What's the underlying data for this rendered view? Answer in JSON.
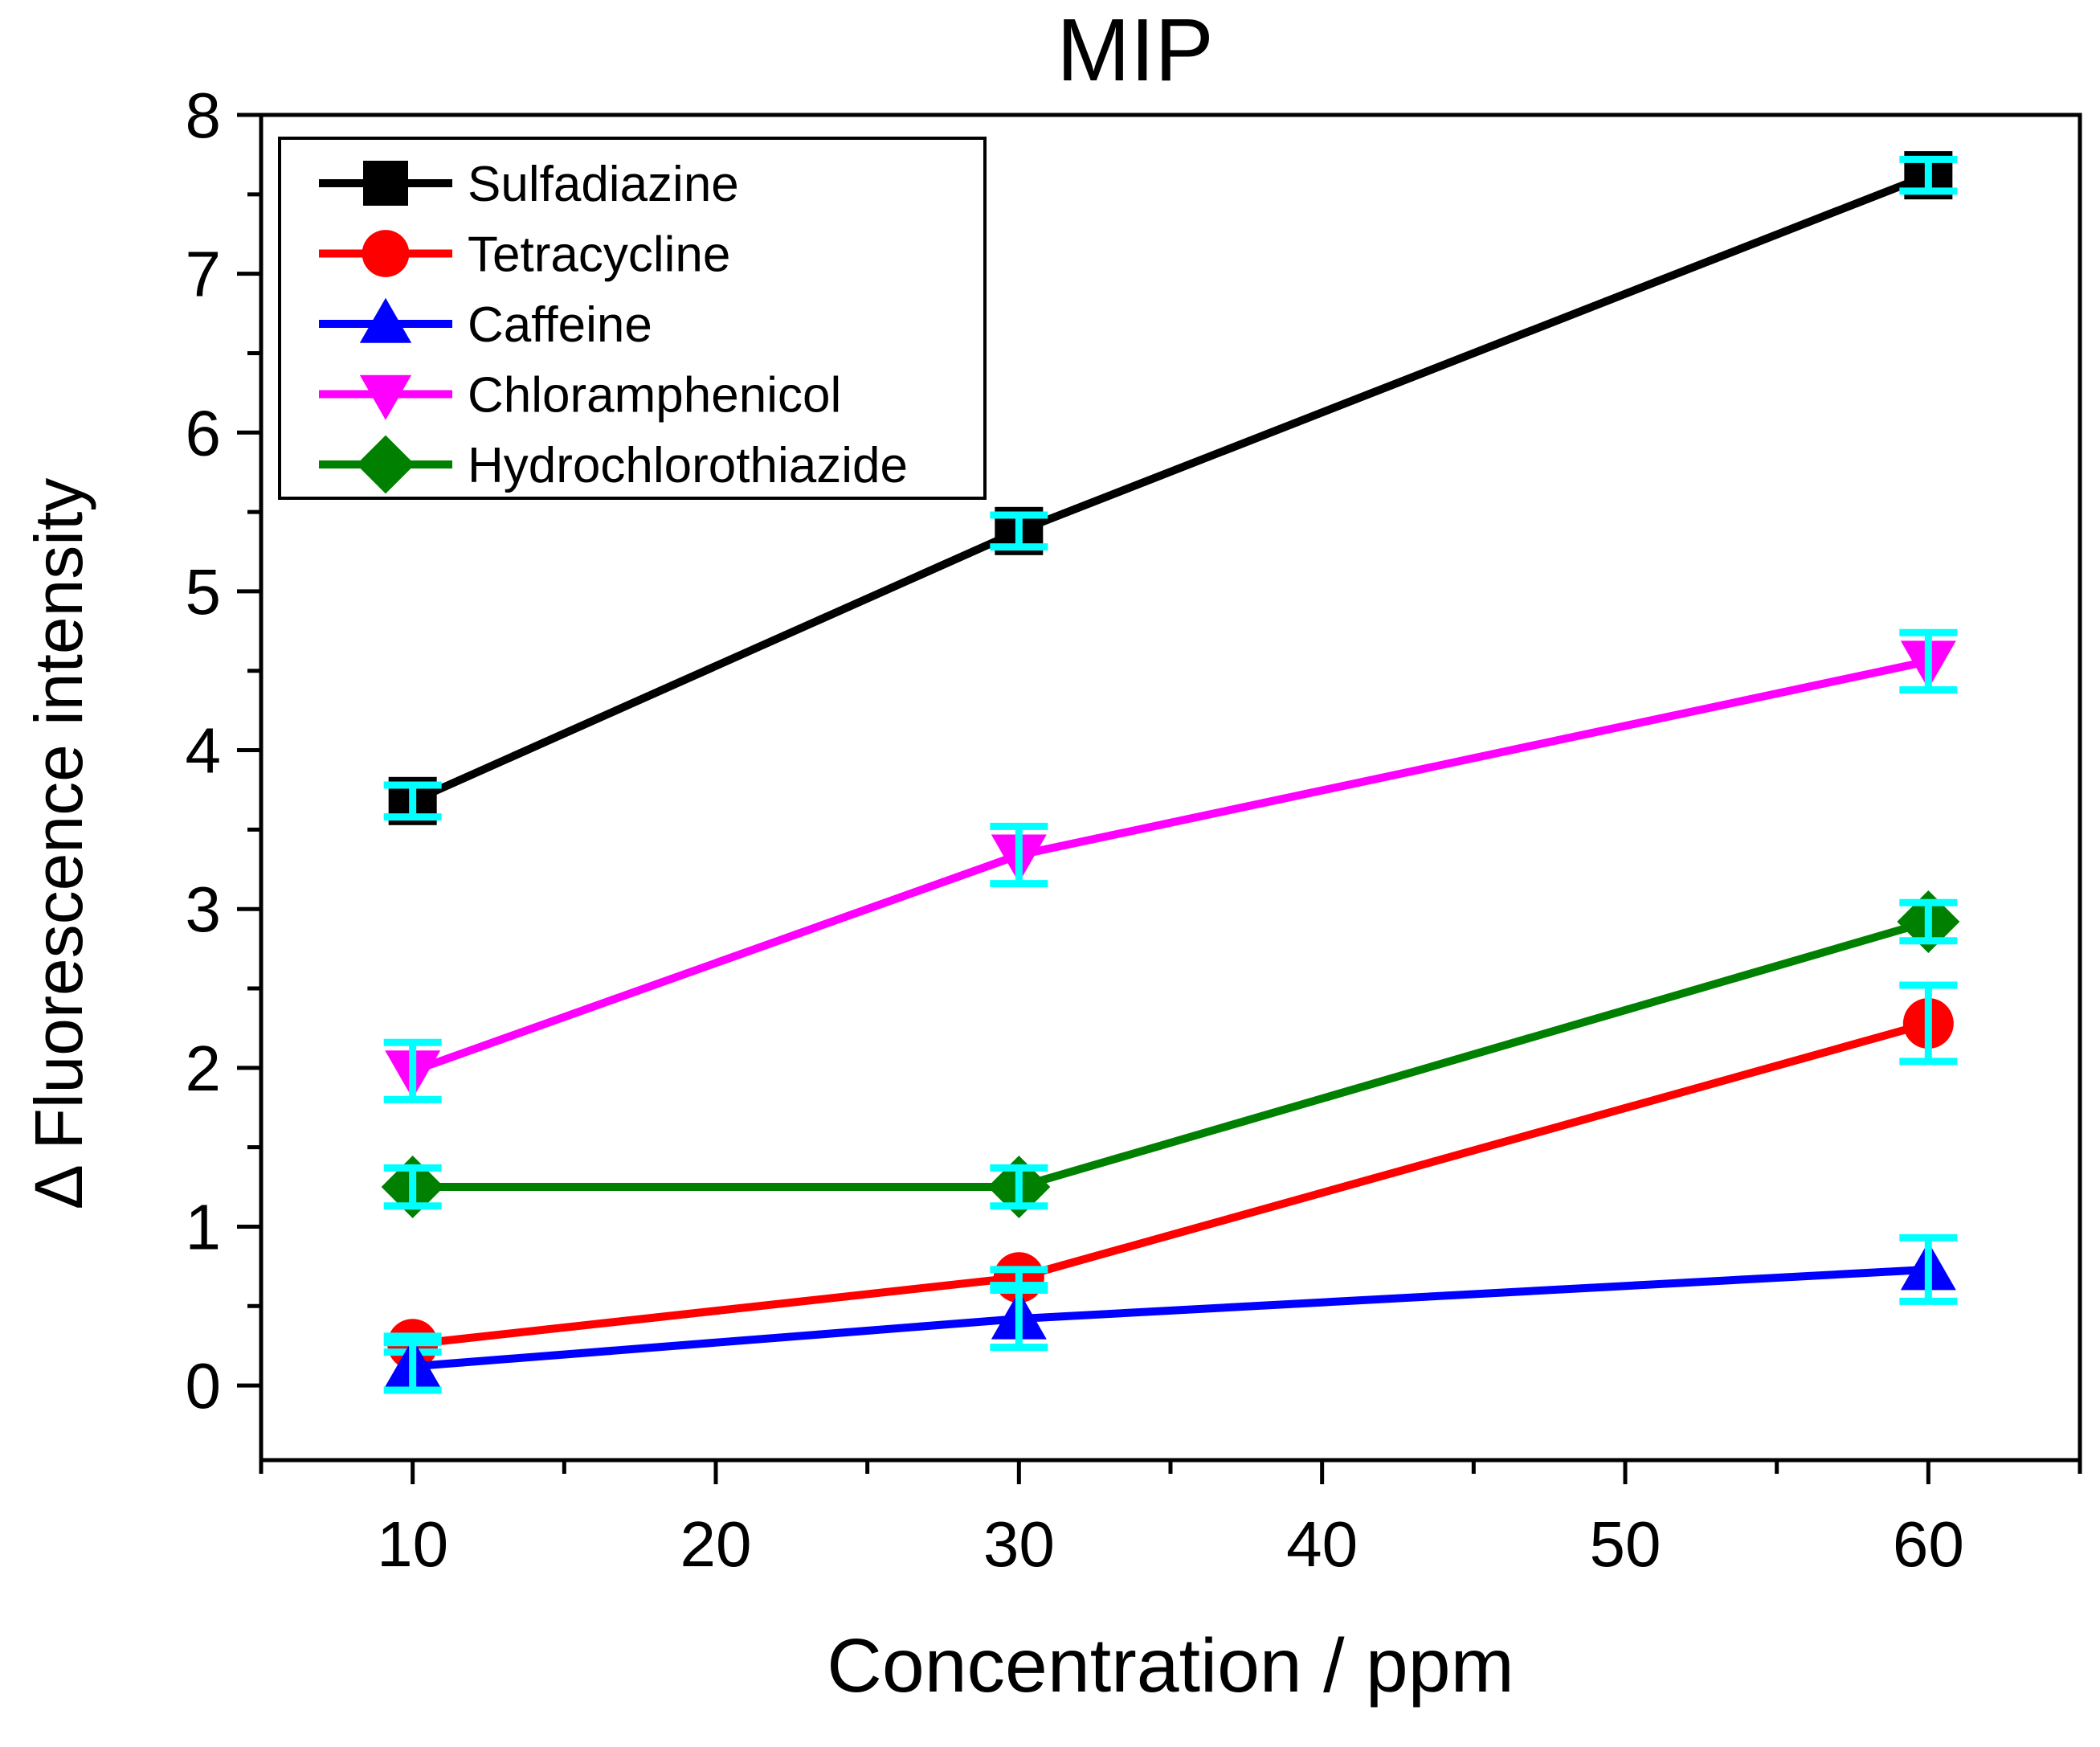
{
  "chart_data": {
    "type": "line",
    "title": "MIP",
    "xlabel": "Concentration / ppm",
    "ylabel": "Δ Fluorescence intensity",
    "xlim": [
      5,
      65
    ],
    "ylim": [
      -0.47,
      8
    ],
    "x_ticks": [
      10,
      20,
      30,
      40,
      50,
      60
    ],
    "y_ticks": [
      0,
      1,
      2,
      3,
      4,
      5,
      6,
      7,
      8
    ],
    "grid": false,
    "legend_position": "top-left",
    "errorbar_color": "#00FFFF",
    "series": [
      {
        "name": "Sulfadiazine",
        "color": "#000000",
        "marker": "square",
        "x": [
          10,
          30,
          60
        ],
        "values": [
          3.68,
          5.38,
          7.62
        ],
        "errors": [
          0.1,
          0.1,
          0.1
        ]
      },
      {
        "name": "Tetracycline",
        "color": "#FF0000",
        "marker": "circle",
        "x": [
          10,
          30,
          60
        ],
        "values": [
          0.26,
          0.68,
          2.28
        ],
        "errors": [
          0.05,
          0.05,
          0.24
        ]
      },
      {
        "name": "Caffeine",
        "color": "#0000FF",
        "marker": "triangle-up",
        "x": [
          10,
          30,
          60
        ],
        "values": [
          0.12,
          0.42,
          0.73
        ],
        "errors": [
          0.15,
          0.18,
          0.2
        ]
      },
      {
        "name": "Chloramphenicol",
        "color": "#FF00FF",
        "marker": "triangle-down",
        "x": [
          10,
          30,
          60
        ],
        "values": [
          1.98,
          3.34,
          4.56
        ],
        "errors": [
          0.18,
          0.18,
          0.18
        ]
      },
      {
        "name": "Hydrochlorothiazide",
        "color": "#008000",
        "marker": "diamond",
        "x": [
          10,
          30,
          60
        ],
        "values": [
          1.25,
          1.25,
          2.92
        ],
        "errors": [
          0.12,
          0.12,
          0.12
        ]
      }
    ]
  }
}
